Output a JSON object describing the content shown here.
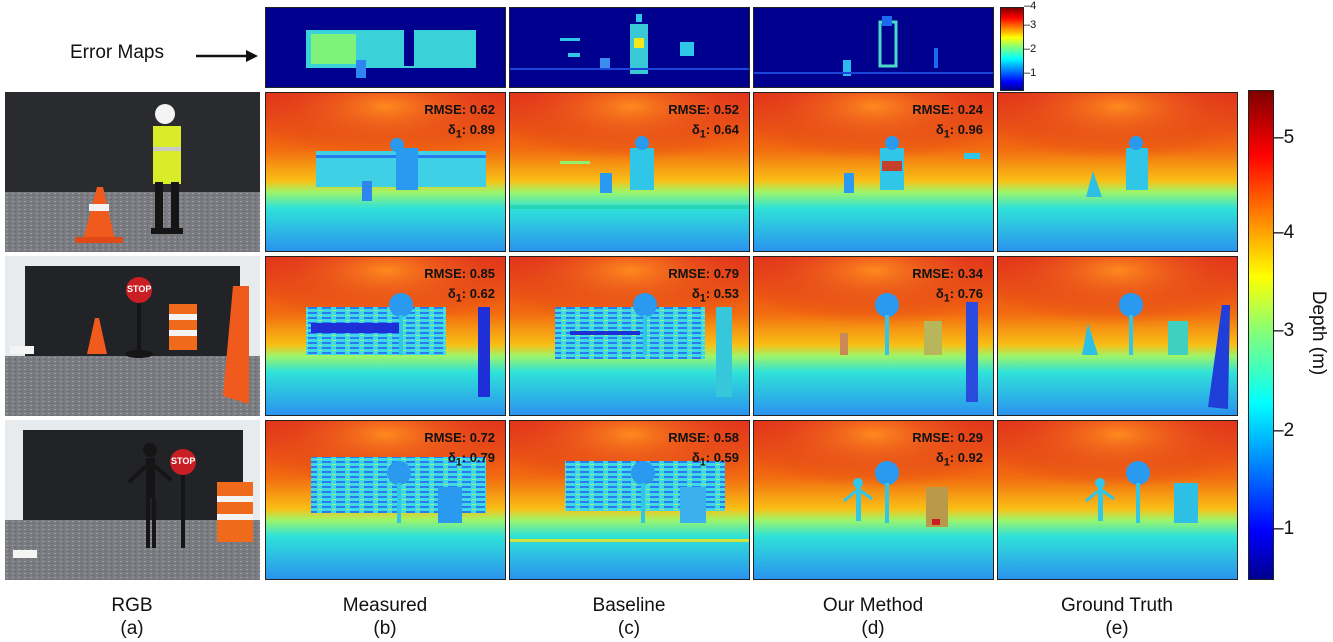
{
  "figure": {
    "error_maps_label": "Error Maps",
    "columns": [
      {
        "title": "RGB",
        "letter": "(a)"
      },
      {
        "title": "Measured",
        "letter": "(b)"
      },
      {
        "title": "Baseline",
        "letter": "(c)"
      },
      {
        "title": "Our Method",
        "letter": "(d)"
      },
      {
        "title": "Ground Truth",
        "letter": "(e)"
      }
    ],
    "rows": [
      {
        "measured": {
          "rmse": "RMSE: 0.62",
          "d1": "0.89"
        },
        "baseline": {
          "rmse": "RMSE: 0.52",
          "d1": "0.64"
        },
        "ours": {
          "rmse": "RMSE: 0.24",
          "d1": "0.96"
        }
      },
      {
        "measured": {
          "rmse": "RMSE: 0.85",
          "d1": "0.62"
        },
        "baseline": {
          "rmse": "RMSE: 0.79",
          "d1": "0.53"
        },
        "ours": {
          "rmse": "RMSE: 0.34",
          "d1": "0.76"
        }
      },
      {
        "measured": {
          "rmse": "RMSE: 0.72",
          "d1": "0.79"
        },
        "baseline": {
          "rmse": "RMSE: 0.58",
          "d1": "0.59"
        },
        "ours": {
          "rmse": "RMSE: 0.29",
          "d1": "0.92"
        }
      }
    ],
    "delta_symbol": "δ",
    "delta_sub": "1",
    "error_colorbar_ticks": [
      "4",
      "3",
      "2",
      "1"
    ],
    "depth_colorbar": {
      "label": "Depth (m)",
      "ticks": [
        "5",
        "4",
        "3",
        "2",
        "1"
      ]
    },
    "scene_text": {
      "stop": "STOP"
    }
  }
}
